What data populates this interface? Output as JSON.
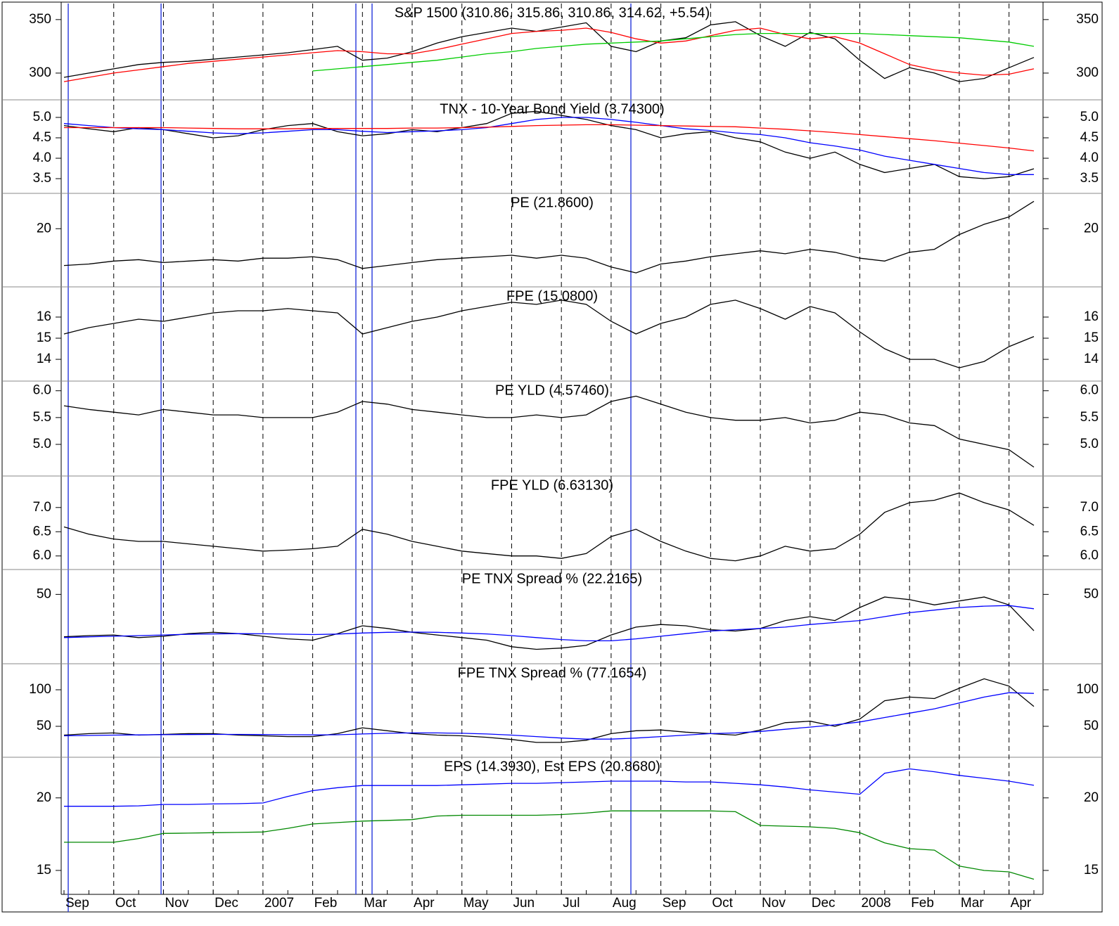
{
  "chart_data": [
    {
      "type": "line",
      "title": "S&P 1500 (310.86, 315.86, 310.86, 314.62, +5.54)",
      "ylim": [
        275,
        365
      ],
      "yticks": [
        300,
        350
      ],
      "series": [
        {
          "color": "#000000",
          "values": [
            296,
            300,
            304,
            308,
            310,
            311,
            313,
            315,
            317,
            319,
            322,
            325,
            312,
            314,
            320,
            328,
            334,
            338,
            342,
            339,
            343,
            347,
            325,
            320,
            330,
            333,
            345,
            348,
            335,
            325,
            338,
            332,
            312,
            295,
            305,
            300,
            292,
            295,
            305,
            314.62
          ]
        },
        {
          "color": "#ff0000",
          "values": [
            292,
            296,
            300,
            303,
            306,
            309,
            311,
            313,
            315,
            317,
            319,
            321,
            320,
            318,
            318,
            322,
            327,
            332,
            337,
            339,
            340,
            342,
            338,
            332,
            328,
            330,
            335,
            340,
            342,
            336,
            332,
            334,
            328,
            318,
            308,
            303,
            300,
            298,
            299,
            304
          ]
        },
        {
          "color": "#00cc00",
          "values": [
            null,
            null,
            null,
            null,
            null,
            null,
            null,
            null,
            null,
            null,
            302,
            304,
            306,
            308,
            310,
            312,
            315,
            318,
            320,
            323,
            325,
            327,
            328,
            329,
            330,
            332,
            334,
            336,
            337,
            337,
            337,
            337,
            337,
            336,
            335,
            334,
            333,
            331,
            329,
            325
          ]
        }
      ]
    },
    {
      "type": "line",
      "title": "TNX - 10-Year Bond Yield (3.74300)",
      "ylim": [
        3.14,
        5.43
      ],
      "yticks": [
        {
          "value": 5,
          "label": "5.0"
        },
        4.5,
        {
          "value": 4,
          "label": "4.0"
        },
        3.5
      ],
      "series": [
        {
          "color": "#000000",
          "values": [
            4.8,
            4.72,
            4.65,
            4.75,
            4.7,
            4.6,
            4.5,
            4.55,
            4.7,
            4.8,
            4.85,
            4.65,
            4.55,
            4.6,
            4.7,
            4.65,
            4.75,
            4.85,
            5.1,
            5.15,
            5.05,
            4.95,
            4.8,
            4.7,
            4.5,
            4.6,
            4.65,
            4.5,
            4.4,
            4.15,
            4.0,
            4.15,
            3.85,
            3.65,
            3.75,
            3.85,
            3.55,
            3.5,
            3.55,
            3.743
          ]
        },
        {
          "color": "#0000ff",
          "values": [
            4.85,
            4.8,
            4.75,
            4.72,
            4.7,
            4.66,
            4.62,
            4.6,
            4.62,
            4.66,
            4.7,
            4.7,
            4.66,
            4.63,
            4.65,
            4.67,
            4.7,
            4.75,
            4.85,
            4.95,
            5.0,
            5.0,
            4.95,
            4.88,
            4.8,
            4.72,
            4.68,
            4.62,
            4.58,
            4.5,
            4.38,
            4.3,
            4.2,
            4.05,
            3.95,
            3.85,
            3.75,
            3.65,
            3.6,
            3.6
          ]
        },
        {
          "color": "#ff0000",
          "values": [
            4.75,
            4.75,
            4.75,
            4.75,
            4.75,
            4.74,
            4.73,
            4.72,
            4.72,
            4.72,
            4.73,
            4.73,
            4.73,
            4.73,
            4.74,
            4.74,
            4.75,
            4.76,
            4.78,
            4.8,
            4.81,
            4.82,
            4.82,
            4.81,
            4.8,
            4.79,
            4.78,
            4.77,
            4.74,
            4.71,
            4.67,
            4.63,
            4.58,
            4.53,
            4.48,
            4.43,
            4.37,
            4.31,
            4.25,
            4.18
          ]
        }
      ]
    },
    {
      "type": "line",
      "title": "PE (21.8600)",
      "ylim": [
        16.05,
        22.4
      ],
      "yticks": [
        20
      ],
      "series": [
        {
          "color": "#000000",
          "values": [
            17.5,
            17.6,
            17.8,
            17.9,
            17.7,
            17.8,
            17.9,
            17.8,
            18.0,
            18.0,
            18.1,
            17.9,
            17.3,
            17.5,
            17.7,
            17.9,
            18.0,
            18.1,
            18.2,
            18.0,
            18.2,
            18.0,
            17.4,
            17.0,
            17.6,
            17.8,
            18.1,
            18.3,
            18.5,
            18.3,
            18.6,
            18.4,
            18.0,
            17.8,
            18.4,
            18.6,
            19.6,
            20.3,
            20.8,
            21.86
          ]
        }
      ]
    },
    {
      "type": "line",
      "title": "FPE (15.0800)",
      "ylim": [
        12.97,
        17.43
      ],
      "yticks": [
        16,
        15,
        14
      ],
      "series": [
        {
          "color": "#000000",
          "values": [
            15.2,
            15.5,
            15.7,
            15.9,
            15.8,
            16.0,
            16.2,
            16.3,
            16.3,
            16.4,
            16.3,
            16.2,
            15.2,
            15.5,
            15.8,
            16.0,
            16.3,
            16.5,
            16.7,
            16.6,
            16.8,
            16.6,
            15.8,
            15.2,
            15.7,
            16.0,
            16.6,
            16.8,
            16.4,
            15.9,
            16.5,
            16.2,
            15.3,
            14.5,
            14.0,
            14.0,
            13.6,
            13.9,
            14.6,
            15.08
          ]
        }
      ]
    },
    {
      "type": "line",
      "title": "PE YLD (4.57460)",
      "ylim": [
        4.41,
        6.18
      ],
      "yticks": [
        {
          "value": 6,
          "label": "6.0"
        },
        5.5,
        {
          "value": 5,
          "label": "5.0"
        }
      ],
      "series": [
        {
          "color": "#000000",
          "values": [
            5.72,
            5.65,
            5.6,
            5.55,
            5.65,
            5.6,
            5.55,
            5.55,
            5.5,
            5.5,
            5.5,
            5.6,
            5.8,
            5.75,
            5.65,
            5.6,
            5.55,
            5.5,
            5.5,
            5.55,
            5.5,
            5.55,
            5.8,
            5.9,
            5.75,
            5.6,
            5.5,
            5.45,
            5.45,
            5.5,
            5.4,
            5.45,
            5.6,
            5.55,
            5.4,
            5.35,
            5.1,
            5.0,
            4.9,
            4.5746
          ]
        }
      ]
    },
    {
      "type": "line",
      "title": "FPE YLD (6.63130)",
      "ylim": [
        5.72,
        7.65
      ],
      "yticks": [
        {
          "value": 7,
          "label": "7.0"
        },
        6.5,
        {
          "value": 6,
          "label": "6.0"
        }
      ],
      "series": [
        {
          "color": "#000000",
          "values": [
            6.6,
            6.45,
            6.35,
            6.3,
            6.3,
            6.25,
            6.2,
            6.15,
            6.1,
            6.12,
            6.15,
            6.2,
            6.55,
            6.45,
            6.3,
            6.2,
            6.1,
            6.05,
            6.0,
            6.0,
            5.95,
            6.05,
            6.4,
            6.55,
            6.3,
            6.1,
            5.95,
            5.9,
            6.0,
            6.2,
            6.1,
            6.15,
            6.45,
            6.9,
            7.1,
            7.15,
            7.3,
            7.1,
            6.95,
            6.6313
          ]
        }
      ]
    },
    {
      "type": "line",
      "title": "PE TNX Spread % (22.2165)",
      "ylim": [
        -3,
        69
      ],
      "yticks": [
        50
      ],
      "series": [
        {
          "color": "#000000",
          "values": [
            17.6,
            18.5,
            19,
            17,
            18,
            20,
            21,
            20,
            18,
            16,
            15,
            20,
            26,
            24,
            21,
            19,
            17,
            15,
            10,
            8,
            9,
            11,
            19,
            25,
            27,
            26,
            23,
            22,
            24,
            30,
            33,
            30,
            40,
            48,
            46,
            42,
            45,
            48,
            42,
            22.2165
          ]
        },
        {
          "color": "#0000ff",
          "values": [
            17,
            17.5,
            18,
            18.5,
            19,
            19.5,
            19.8,
            20,
            19.9,
            19.6,
            19.3,
            19.7,
            20.5,
            21,
            21.2,
            21,
            20.5,
            19.8,
            18.5,
            17,
            15.5,
            14.5,
            14.5,
            16,
            18,
            20,
            22,
            23,
            24,
            25,
            27,
            28.5,
            30,
            33,
            36,
            38,
            40,
            41,
            41.5,
            39
          ]
        }
      ]
    },
    {
      "type": "line",
      "title": "FPE TNX Spread % (77.1654)",
      "ylim": [
        7.7,
        135.6
      ],
      "yticks": [
        100,
        50
      ],
      "series": [
        {
          "color": "#000000",
          "values": [
            38,
            40,
            41,
            38,
            39,
            40,
            40,
            38,
            37,
            36,
            36,
            40,
            48,
            44,
            40,
            38,
            37,
            35,
            32,
            28,
            28,
            31,
            40,
            44,
            45,
            42,
            40,
            38,
            45,
            55,
            57,
            50,
            60,
            85,
            90,
            88,
            102,
            115,
            105,
            77.1654
          ]
        },
        {
          "color": "#0000ff",
          "values": [
            37,
            37.5,
            38,
            38.3,
            38.6,
            38.8,
            39,
            39,
            38.8,
            38.5,
            38.3,
            38.5,
            39.5,
            40.5,
            41,
            41,
            40.5,
            39.5,
            38,
            36,
            34,
            32.5,
            32.5,
            34,
            36,
            38,
            40,
            41,
            43,
            46,
            49,
            52,
            56,
            62,
            68,
            74,
            82,
            90,
            96,
            95
          ]
        }
      ]
    },
    {
      "type": "line",
      "title": "EPS (14.3930), Est EPS (20.8680)",
      "ylim": [
        13.35,
        22.8
      ],
      "yticks": [
        20,
        15
      ],
      "categories": [
        "Sep",
        null,
        "Oct",
        null,
        "Nov",
        null,
        "Dec",
        null,
        "2007",
        null,
        "Feb",
        null,
        "Mar",
        null,
        "Apr",
        null,
        "May",
        null,
        "Jun",
        null,
        "Jul",
        null,
        "Aug",
        null,
        "Sep",
        null,
        "Oct",
        null,
        "Nov",
        null,
        "Dec",
        null,
        "2008",
        null,
        "Feb",
        null,
        "Mar",
        null,
        "Apr",
        null
      ],
      "series": [
        {
          "color": "#0000ff",
          "values": [
            19.42,
            19.42,
            19.42,
            19.45,
            19.55,
            19.55,
            19.58,
            19.6,
            19.65,
            20.1,
            20.5,
            20.7,
            20.85,
            20.85,
            20.85,
            20.85,
            20.9,
            20.95,
            21.0,
            21.0,
            21.05,
            21.1,
            21.15,
            21.15,
            21.15,
            21.1,
            21.1,
            21.0,
            20.9,
            20.75,
            20.55,
            20.4,
            20.25,
            21.7,
            22.0,
            21.8,
            21.55,
            21.35,
            21.15,
            20.868
          ]
        },
        {
          "color": "#008800",
          "values": [
            16.94,
            16.94,
            16.94,
            17.2,
            17.55,
            17.57,
            17.6,
            17.62,
            17.65,
            17.9,
            18.2,
            18.3,
            18.4,
            18.45,
            18.5,
            18.75,
            18.8,
            18.8,
            18.8,
            18.8,
            18.85,
            18.95,
            19.1,
            19.1,
            19.1,
            19.1,
            19.1,
            19.05,
            18.1,
            18.05,
            18.0,
            17.9,
            17.6,
            16.9,
            16.5,
            16.4,
            15.3,
            15.0,
            14.9,
            14.393
          ]
        }
      ]
    }
  ]
}
